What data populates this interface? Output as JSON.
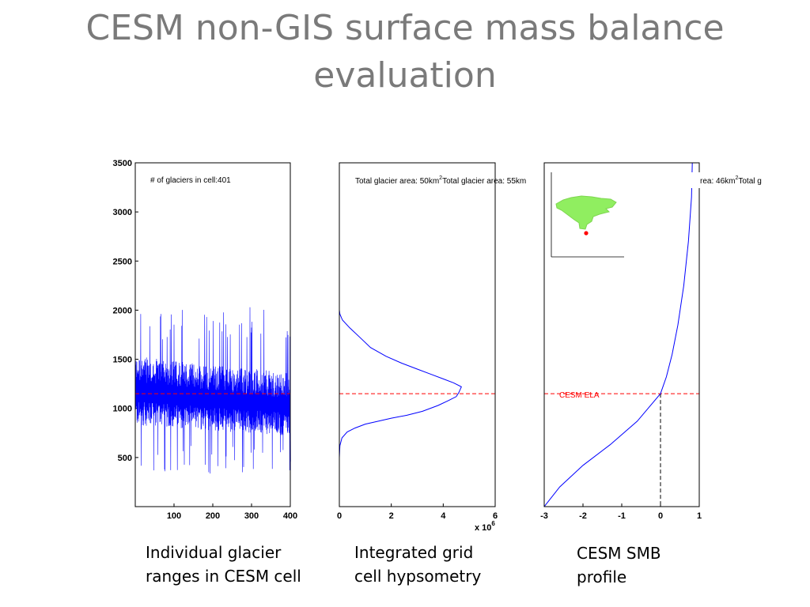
{
  "slide": {
    "title_line1": "CESM non-GIS surface mass balance",
    "title_line2": "evaluation"
  },
  "captions": {
    "left": [
      "Individual glacier",
      "ranges in CESM cell"
    ],
    "middle": [
      "Integrated grid",
      "cell hypsometry"
    ],
    "right": [
      "CESM SMB",
      "profile"
    ]
  },
  "colors": {
    "series": "#0000ff",
    "ela": "#ff0000",
    "inset_glacier": "#90ee60",
    "inset_marker": "#ff0000"
  },
  "chart_data": [
    {
      "type": "line",
      "name": "glacier-ranges",
      "annotation": "# of glaciers in cell:401",
      "xlim": [
        0,
        400
      ],
      "ylim": [
        0,
        3500
      ],
      "xticks": [
        100,
        200,
        300,
        400
      ],
      "yticks": [
        500,
        1000,
        1500,
        2000,
        2500,
        3000,
        3500
      ],
      "n_glaciers": 401,
      "ela": 1150,
      "range_envelope": {
        "median_low": 950,
        "median_high": 1400,
        "min": 330,
        "max": 2050
      }
    },
    {
      "type": "line",
      "name": "hypsometry",
      "annotations": [
        "Total glacier area: 50km",
        "2",
        "Total glacier area: 55km"
      ],
      "xlim": [
        0,
        6
      ],
      "ylim": [
        0,
        3500
      ],
      "xticks": [
        0,
        2,
        4,
        6
      ],
      "x_multiplier": "x 10",
      "x_multiplier_exp": "6",
      "ela": 1150,
      "x": [
        0,
        0.02,
        0.1,
        0.3,
        0.6,
        1.0,
        1.5,
        2.0,
        2.6,
        3.2,
        3.8,
        4.2,
        4.5,
        4.6,
        4.7,
        4.4,
        4.0,
        3.5,
        3.0,
        2.4,
        1.8,
        1.2,
        0.8,
        0.4,
        0.12,
        0.02,
        0
      ],
      "y": [
        500,
        620,
        700,
        760,
        800,
        840,
        870,
        900,
        930,
        970,
        1030,
        1080,
        1120,
        1160,
        1220,
        1260,
        1300,
        1350,
        1400,
        1460,
        1530,
        1620,
        1720,
        1820,
        1900,
        1960,
        2000
      ]
    },
    {
      "type": "line",
      "name": "smb-profile",
      "annotations": [
        "rea: 46km",
        "2",
        "Total g"
      ],
      "ela_label": "CESM ELA",
      "xlim": [
        -3,
        1
      ],
      "ylim": [
        0,
        3500
      ],
      "xticks": [
        -3,
        -2,
        -1,
        0,
        1
      ],
      "ela": 1150,
      "x": [
        -3.0,
        -2.6,
        -2.0,
        -1.3,
        -0.6,
        0.0,
        0.15,
        0.3,
        0.45,
        0.6,
        0.72,
        0.8,
        0.82
      ],
      "y": [
        0,
        200,
        420,
        630,
        870,
        1150,
        1320,
        1550,
        1850,
        2250,
        2700,
        3150,
        3500
      ]
    }
  ]
}
